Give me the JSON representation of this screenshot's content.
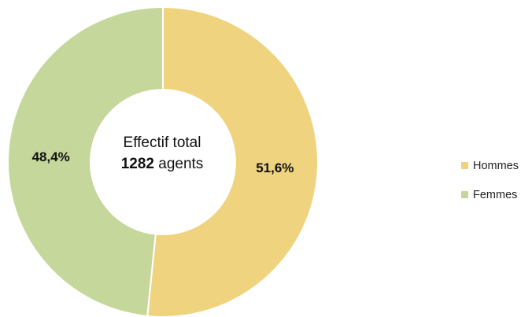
{
  "chart_data": {
    "type": "pie",
    "variant": "donut",
    "categories": [
      "Hommes",
      "Femmes"
    ],
    "values": [
      51.6,
      48.4
    ],
    "data_labels": [
      "51,6%",
      "48,4%"
    ],
    "colors": [
      "#EFD37F",
      "#C5D79B"
    ],
    "center_text": {
      "line1": "Effectif total",
      "number": "1282",
      "unit": " agents"
    },
    "legend": {
      "placement": "right",
      "entries": [
        {
          "label": "Hommes",
          "color": "#EFD37F"
        },
        {
          "label": "Femmes",
          "color": "#C5D79B"
        }
      ]
    }
  }
}
